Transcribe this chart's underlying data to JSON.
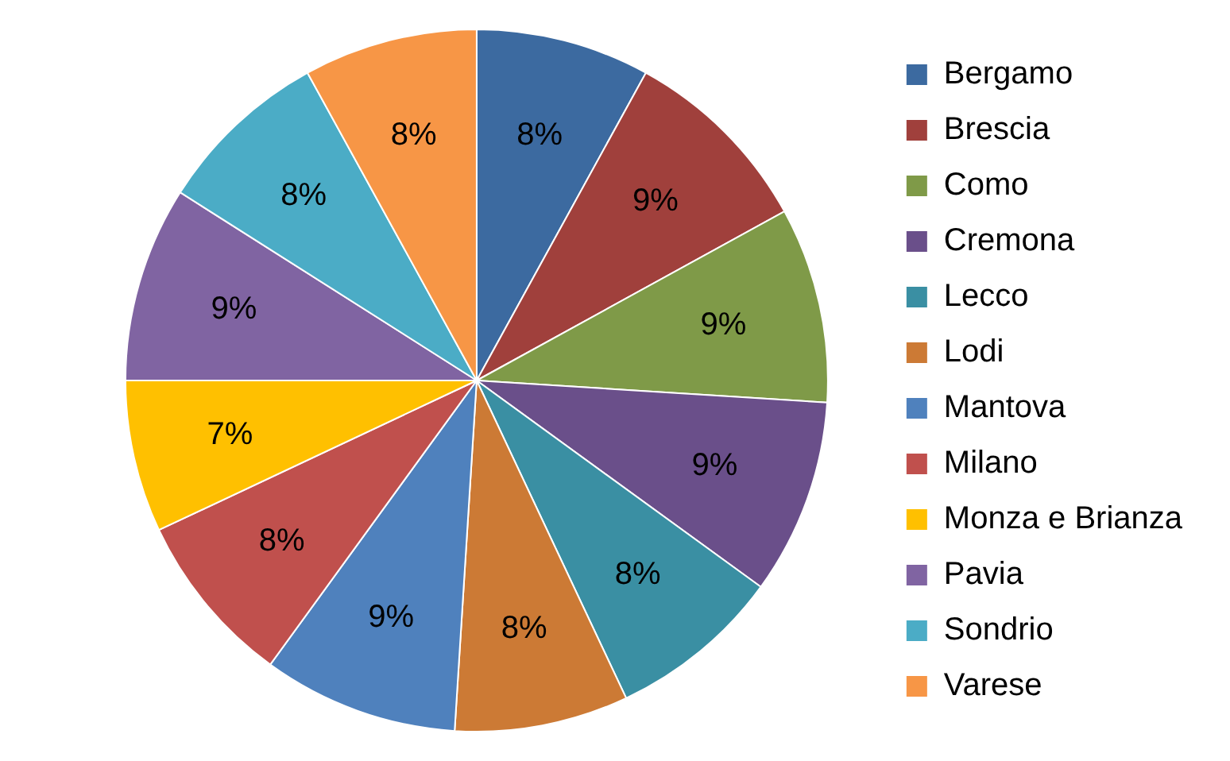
{
  "chart_data": {
    "type": "pie",
    "categories": [
      "Bergamo",
      "Brescia",
      "Como",
      "Cremona",
      "Lecco",
      "Lodi",
      "Mantova",
      "Milano",
      "Monza e Brianza",
      "Pavia",
      "Sondrio",
      "Varese"
    ],
    "values": [
      8,
      9,
      9,
      9,
      8,
      8,
      9,
      8,
      7,
      9,
      8,
      8
    ],
    "value_labels": [
      "8%",
      "9%",
      "9%",
      "9%",
      "8%",
      "8%",
      "9%",
      "8%",
      "7%",
      "9%",
      "8%",
      "8%"
    ],
    "colors": [
      "#3c6aa0",
      "#a0403c",
      "#7f9a48",
      "#6a4f8a",
      "#3a8fa3",
      "#cc7a35",
      "#4f81bd",
      "#c0504d",
      "#ffc000",
      "#8064a2",
      "#4bacc6",
      "#f79646"
    ],
    "legend": "right"
  }
}
